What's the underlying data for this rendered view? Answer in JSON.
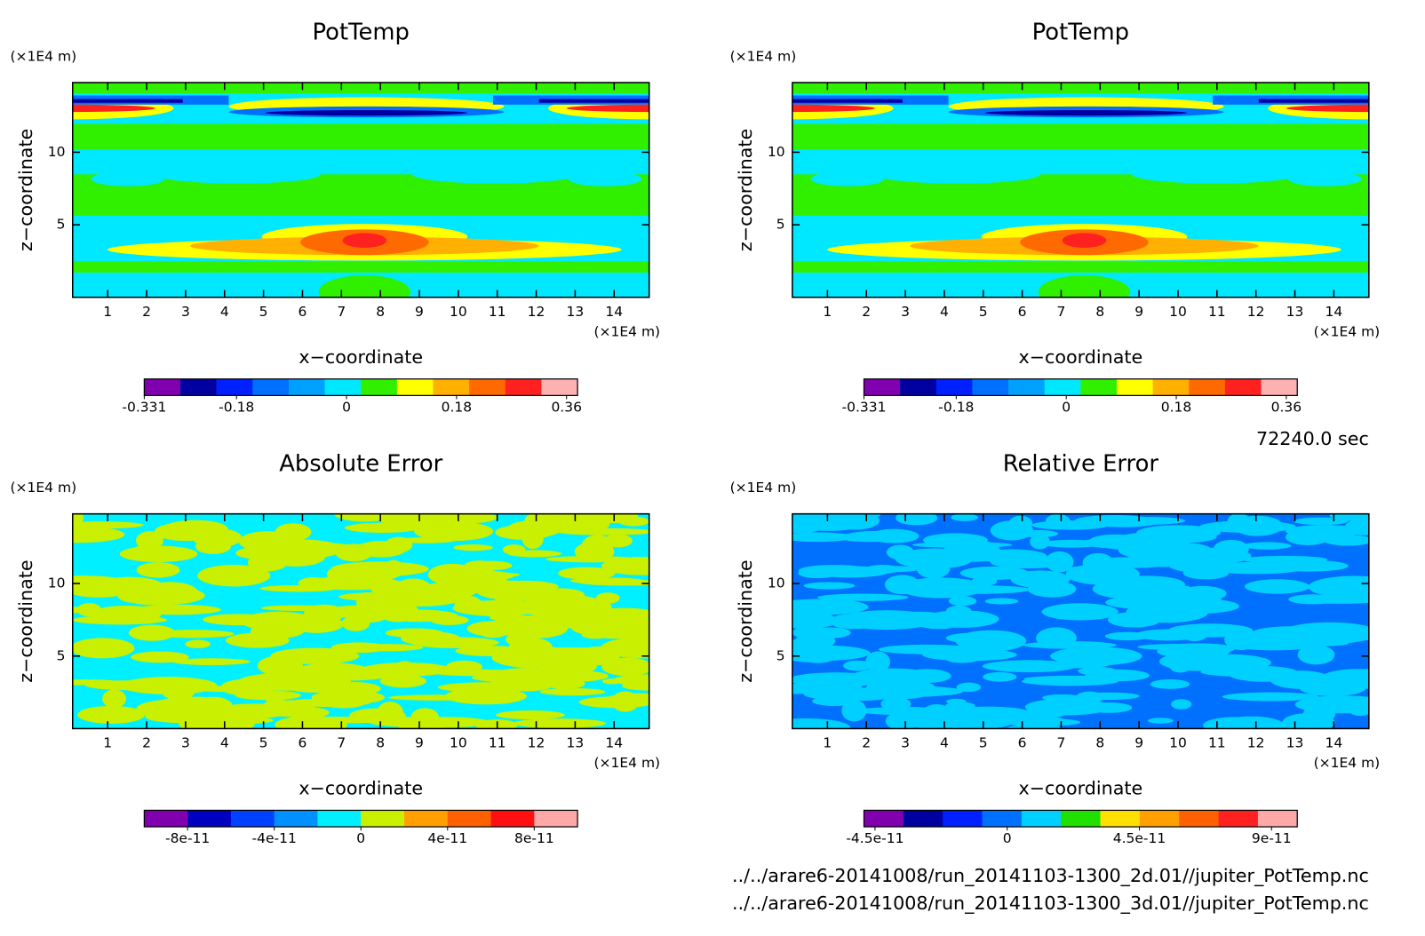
{
  "chart_data": [
    {
      "type": "contour",
      "title": "PotTemp",
      "xlabel": "x−coordinate",
      "ylabel": "z−coordinate",
      "x_unit": "(×1E4 m)",
      "y_unit": "(×1E4 m)",
      "xlim": [
        0.1,
        14.9
      ],
      "ylim": [
        0,
        14.8
      ],
      "xticks": [
        1,
        2,
        3,
        4,
        5,
        6,
        7,
        8,
        9,
        10,
        11,
        12,
        13,
        14
      ],
      "yticks": [
        5,
        10
      ],
      "colorbar": {
        "lim": [
          -0.331,
          0.378
        ],
        "ticks": [
          -0.331,
          -0.18,
          0,
          0.18,
          0.36
        ],
        "colors": [
          "#8000b0",
          "#0000a0",
          "#0020ff",
          "#0070ff",
          "#00a0ff",
          "#00e8ff",
          "#30f000",
          "#ffff00",
          "#ffb000",
          "#ff6a00",
          "#ff2020",
          "#ffb0b0"
        ]
      }
    },
    {
      "type": "contour",
      "title": "PotTemp",
      "xlabel": "x−coordinate",
      "ylabel": "z−coordinate",
      "x_unit": "(×1E4 m)",
      "y_unit": "(×1E4 m)",
      "xlim": [
        0.1,
        14.9
      ],
      "ylim": [
        0,
        14.8
      ],
      "xticks": [
        1,
        2,
        3,
        4,
        5,
        6,
        7,
        8,
        9,
        10,
        11,
        12,
        13,
        14
      ],
      "yticks": [
        5,
        10
      ],
      "colorbar": {
        "lim": [
          -0.331,
          0.378
        ],
        "ticks": [
          -0.331,
          -0.18,
          0,
          0.18,
          0.36
        ],
        "colors": [
          "#8000b0",
          "#0000a0",
          "#0020ff",
          "#0070ff",
          "#00a0ff",
          "#00e8ff",
          "#30f000",
          "#ffff00",
          "#ffb000",
          "#ff6a00",
          "#ff2020",
          "#ffb0b0"
        ]
      }
    },
    {
      "type": "contour",
      "title": "Absolute Error",
      "xlabel": "x−coordinate",
      "ylabel": "z−coordinate",
      "x_unit": "(×1E4 m)",
      "y_unit": "(×1E4 m)",
      "xlim": [
        0.1,
        14.9
      ],
      "ylim": [
        0,
        14.8
      ],
      "xticks": [
        1,
        2,
        3,
        4,
        5,
        6,
        7,
        8,
        9,
        10,
        11,
        12,
        13,
        14
      ],
      "yticks": [
        5,
        10
      ],
      "colorbar": {
        "lim": [
          -1e-10,
          1e-10
        ],
        "ticks": [
          -8e-11,
          -4e-11,
          0,
          4e-11,
          8e-11
        ],
        "colors": [
          "#8000b0",
          "#0000c0",
          "#0040ff",
          "#0090ff",
          "#00f0ff",
          "#c8f000",
          "#ffa000",
          "#ff6000",
          "#ff1010",
          "#ffa8a8"
        ]
      }
    },
    {
      "type": "contour",
      "title": "Relative Error",
      "xlabel": "x−coordinate",
      "ylabel": "z−coordinate",
      "x_unit": "(×1E4 m)",
      "y_unit": "(×1E4 m)",
      "xlim": [
        0.1,
        14.9
      ],
      "ylim": [
        0,
        14.8
      ],
      "xticks": [
        1,
        2,
        3,
        4,
        5,
        6,
        7,
        8,
        9,
        10,
        11,
        12,
        13,
        14
      ],
      "yticks": [
        5,
        10
      ],
      "colorbar": {
        "lim": [
          -4.875e-11,
          9.875e-11
        ],
        "ticks": [
          -4.5e-11,
          0,
          4.5e-11,
          9e-11
        ],
        "colors": [
          "#8000b0",
          "#0000a0",
          "#0020ff",
          "#0070ff",
          "#00d0ff",
          "#20e000",
          "#ffe000",
          "#ffa000",
          "#ff6000",
          "#ff2020",
          "#ffa8a8"
        ]
      }
    }
  ],
  "time": "72240.0 sec",
  "files": [
    "../../arare6-20141008/run_20141103-1300_2d.01//jupiter_PotTemp.nc",
    "../../arare6-20141008/run_20141103-1300_3d.01//jupiter_PotTemp.nc"
  ]
}
